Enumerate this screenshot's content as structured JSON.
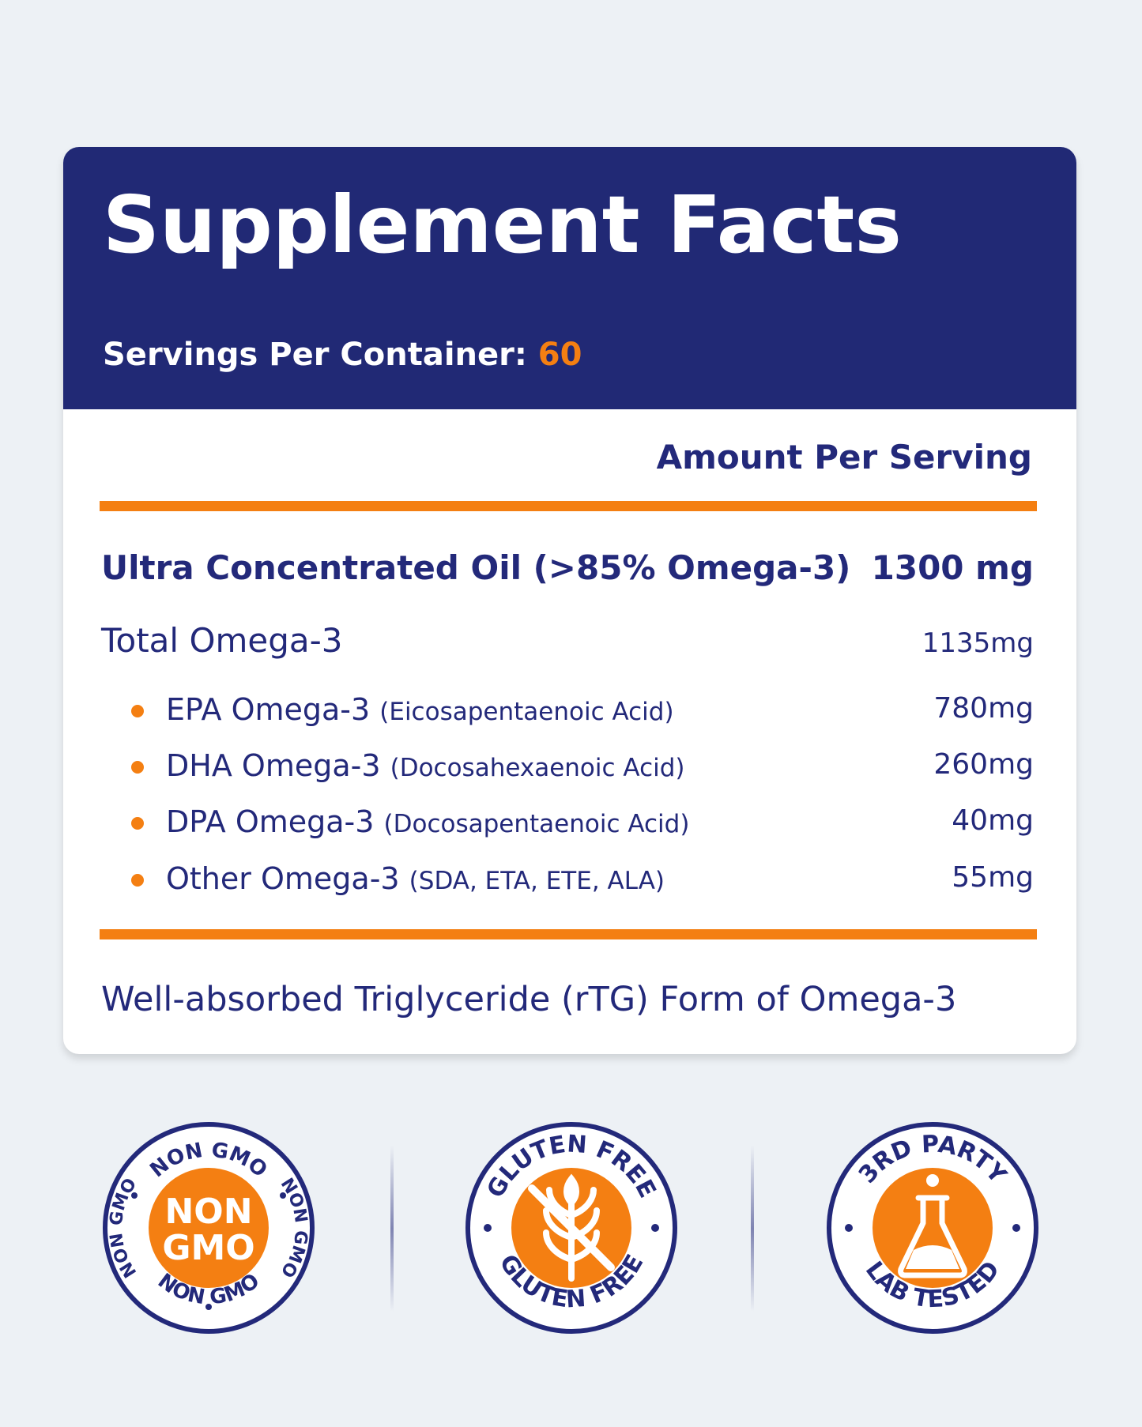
{
  "header": {
    "title": "Supplement Facts",
    "servings_label": "Servings Per Container:",
    "servings_value": "60"
  },
  "table": {
    "amount_header": "Amount Per Serving",
    "main": {
      "name": "Ultra Concentrated Oil (>85% Omega-3)",
      "amount": "1300 mg"
    },
    "total": {
      "name": "Total Omega-3",
      "amount": "1135mg"
    },
    "items": [
      {
        "name": "EPA Omega-3",
        "detail": "(Eicosapentaenoic Acid)",
        "amount": "780mg"
      },
      {
        "name": "DHA Omega-3",
        "detail": "(Docosahexaenoic Acid)",
        "amount": "260mg"
      },
      {
        "name": "DPA Omega-3",
        "detail": "(Docosapentaenoic Acid)",
        "amount": "40mg"
      },
      {
        "name": "Other Omega-3",
        "detail": "(SDA, ETA, ETE, ALA)",
        "amount": "55mg"
      }
    ],
    "footnote": "Well-absorbed Triglyceride (rTG) Form of Omega-3"
  },
  "badges": [
    {
      "icon": "non-gmo-badge",
      "ring_top": "NON GMO",
      "ring_bottom": "NON GMO",
      "ring_left": "NON GMO",
      "ring_right": "NON GMO",
      "center_line1": "NON",
      "center_line2": "GMO"
    },
    {
      "icon": "gluten-free-badge",
      "ring_top": "GLUTEN FREE",
      "ring_bottom": "GLUTEN FREE"
    },
    {
      "icon": "lab-tested-badge",
      "ring_top": "3RD PARTY",
      "ring_bottom": "LAB TESTED"
    }
  ],
  "colors": {
    "navy": "#212975",
    "orange": "#f47f12",
    "background": "#edf1f5",
    "card": "#ffffff"
  }
}
